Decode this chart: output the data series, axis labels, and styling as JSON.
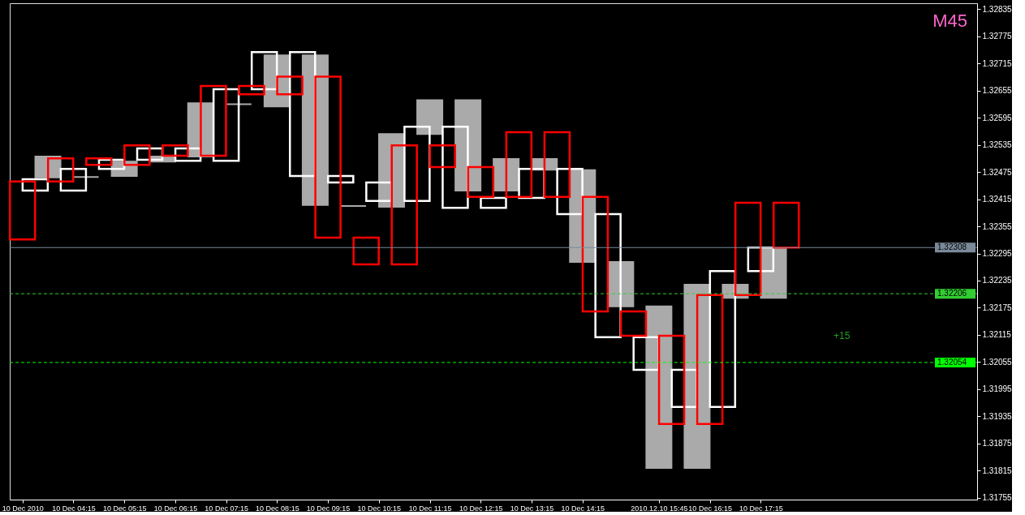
{
  "chart_data": {
    "type": "bar",
    "title": "M45",
    "categories": [
      "10 Dec 2010",
      null,
      null,
      null,
      "10 Dec 04:15",
      null,
      null,
      null,
      "10 Dec 05:15",
      null,
      null,
      null,
      "10 Dec 06:15",
      null,
      null,
      null,
      "10 Dec 07:15",
      null,
      null,
      null,
      "10 Dec 08:15",
      null,
      null,
      null,
      "10 Dec 09:15",
      null,
      null,
      null,
      "10 Dec 10:15",
      null,
      null,
      null,
      "10 Dec 11:15",
      null,
      null,
      null,
      "10 Dec 12:15",
      null,
      null,
      null,
      "10 Dec 13:15",
      null,
      null,
      null,
      "10 Dec 14:15",
      null,
      null,
      null,
      null,
      null,
      "2010.12.10 15:45",
      null,
      null,
      null,
      "10 Dec 16:15",
      null,
      null,
      null,
      "10 Dec 17:15",
      null,
      null,
      null,
      null,
      null,
      null,
      null,
      null,
      null,
      null,
      null,
      null,
      null,
      null,
      null,
      null
    ],
    "base": [
      1.32326,
      1.32434,
      1.32463,
      1.32454,
      1.32434,
      1.32464,
      1.32491,
      1.32482,
      1.32466,
      1.32491,
      1.32502,
      1.32498,
      1.32511,
      1.325,
      1.32509,
      1.32511,
      1.325,
      1.32625,
      1.32647,
      1.32658,
      1.3262,
      1.32647,
      1.32466,
      1.32402,
      1.3233,
      1.32452,
      1.324,
      1.32271,
      1.32411,
      1.32398,
      1.32271,
      1.32411,
      1.32559,
      1.32486,
      1.32396,
      1.32434,
      1.3242,
      1.32396,
      1.32434,
      1.3242,
      1.32418,
      1.3248,
      1.3242,
      1.32382,
      1.32276,
      1.32167,
      1.3211,
      1.32178,
      1.32113,
      1.32038,
      1.31821,
      1.31918,
      1.31956,
      1.31821,
      1.31918,
      1.31956,
      1.32197,
      1.32203,
      1.32256,
      1.32197,
      1.32308,
      null,
      null,
      null,
      null,
      null,
      null,
      null,
      null,
      null,
      null,
      null,
      null,
      null,
      null
    ],
    "values": [
      0.00128,
      0.00025,
      0.00046,
      0.00051,
      0.00048,
      0,
      0.00014,
      0.0002,
      0.00032,
      0.00043,
      0.00025,
      0.00011,
      0.00023,
      0.00027,
      0.00118,
      0.00154,
      0.00158,
      0,
      0.00018,
      0.00082,
      0.00113,
      0.00039,
      0.00274,
      0.00331,
      0.00356,
      0.00014,
      0,
      0.00059,
      0.00041,
      0.00161,
      0.00263,
      0.00164,
      0.00075,
      0.00048,
      0.00179,
      0.002,
      0.00066,
      0.00022,
      0.0007,
      0.00143,
      0.00064,
      0.00024,
      0.00143,
      0.001,
      0.00203,
      0.00253,
      0.00272,
      0.00098,
      0.00054,
      0.00072,
      0.00357,
      0.00195,
      0.00082,
      0.00405,
      0.00285,
      0.003,
      0.00029,
      0.00204,
      0.00052,
      0.00111,
      0.00099,
      null,
      null,
      null,
      null,
      null,
      null,
      null,
      null,
      null,
      null,
      null,
      null,
      null,
      null
    ],
    "colors": [
      "#ff0000",
      "#ffffff",
      "#aaaaaa",
      "#ff0000",
      "#ffffff",
      "#aaaaaa",
      "#ff0000",
      "#ffffff",
      "#aaaaaa",
      "#ff0000",
      "#ffffff",
      "#aaaaaa",
      "#ff0000",
      "#ffffff",
      "#aaaaaa",
      "#ff0000",
      "#ffffff",
      "#aaaaaa",
      "#ff0000",
      "#ffffff",
      "#aaaaaa",
      "#ff0000",
      "#ffffff",
      "#aaaaaa",
      "#ff0000",
      "#ffffff",
      "#aaaaaa",
      "#ff0000",
      "#ffffff",
      "#aaaaaa",
      "#ff0000",
      "#ffffff",
      "#aaaaaa",
      "#ff0000",
      "#ffffff",
      "#aaaaaa",
      "#ff0000",
      "#ffffff",
      "#aaaaaa",
      "#ff0000",
      "#ffffff",
      "#aaaaaa",
      "#ff0000",
      "#ffffff",
      "#aaaaaa",
      "#ff0000",
      "#ffffff",
      "#aaaaaa",
      "#ff0000",
      "#ffffff",
      "#aaaaaa",
      "#ff0000",
      "#ffffff",
      "#aaaaaa",
      "#ff0000",
      "#ffffff",
      "#aaaaaa",
      "#ff0000",
      "#ffffff",
      "#aaaaaa",
      "#ff0000",
      null,
      null,
      null,
      null,
      null,
      null,
      null,
      null,
      null,
      null,
      null,
      null,
      null,
      null
    ],
    "ylim": [
      1.31751,
      1.32848
    ],
    "yticks": [
      1.32835,
      1.32775,
      1.32715,
      1.32655,
      1.32595,
      1.32535,
      1.32475,
      1.32415,
      1.32355,
      1.32295,
      1.32235,
      1.32175,
      1.32115,
      1.32055,
      1.31995,
      1.31935,
      1.31875,
      1.31815,
      1.31755
    ],
    "ref_lines": [
      {
        "axis": "y",
        "value": 1.32308,
        "label": "1.32308",
        "color": "#7a8a9a",
        "line_style": "solid"
      },
      {
        "axis": "y",
        "value": 1.32206,
        "label": "1.32206",
        "color": "#32cd32",
        "line_style": "dashed"
      },
      {
        "axis": "y",
        "value": 1.32054,
        "label": "1.32054",
        "color": "#00ff00",
        "line_style": "dashed"
      }
    ],
    "annotations": [
      "+15"
    ]
  }
}
